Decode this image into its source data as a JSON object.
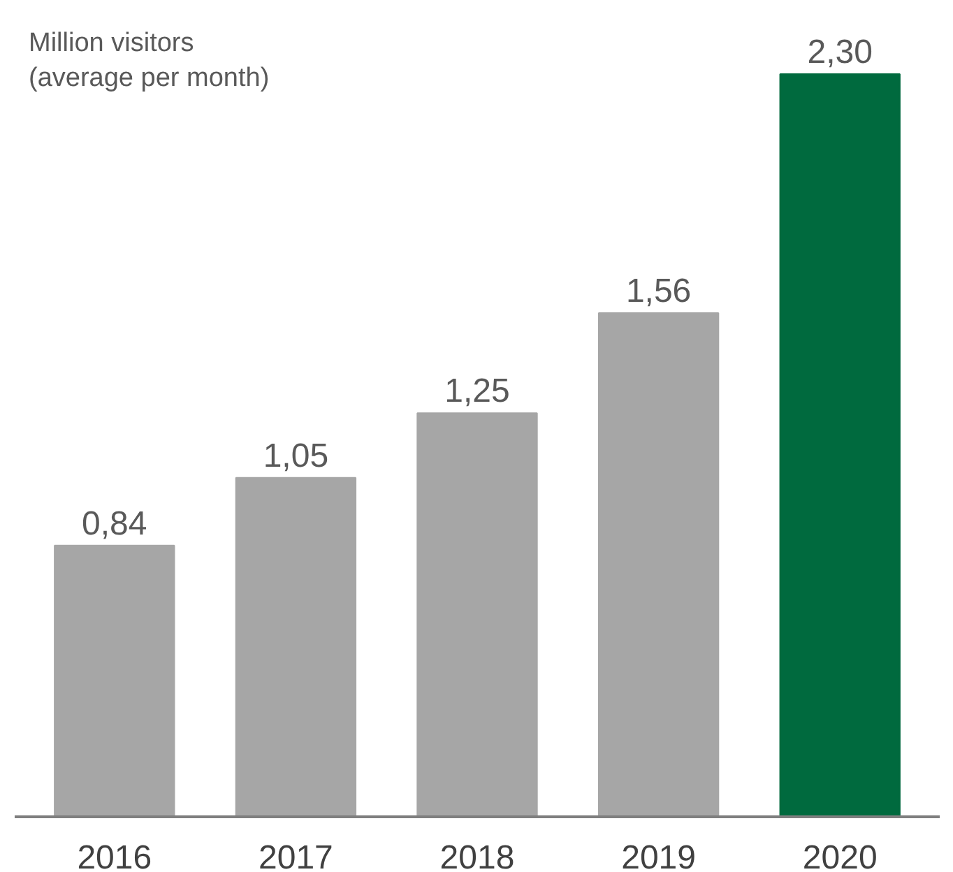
{
  "chart_data": {
    "type": "bar",
    "title": "Million visitors\n(average per month)",
    "categories": [
      "2016",
      "2017",
      "2018",
      "2019",
      "2020"
    ],
    "values": [
      0.84,
      1.05,
      1.25,
      1.56,
      2.3
    ],
    "value_labels": [
      "0,84",
      "1,05",
      "1,25",
      "1,56",
      "2,30"
    ],
    "colors": [
      "#a6a6a6",
      "#a6a6a6",
      "#a6a6a6",
      "#a6a6a6",
      "#006a3e"
    ],
    "grid": false
  }
}
